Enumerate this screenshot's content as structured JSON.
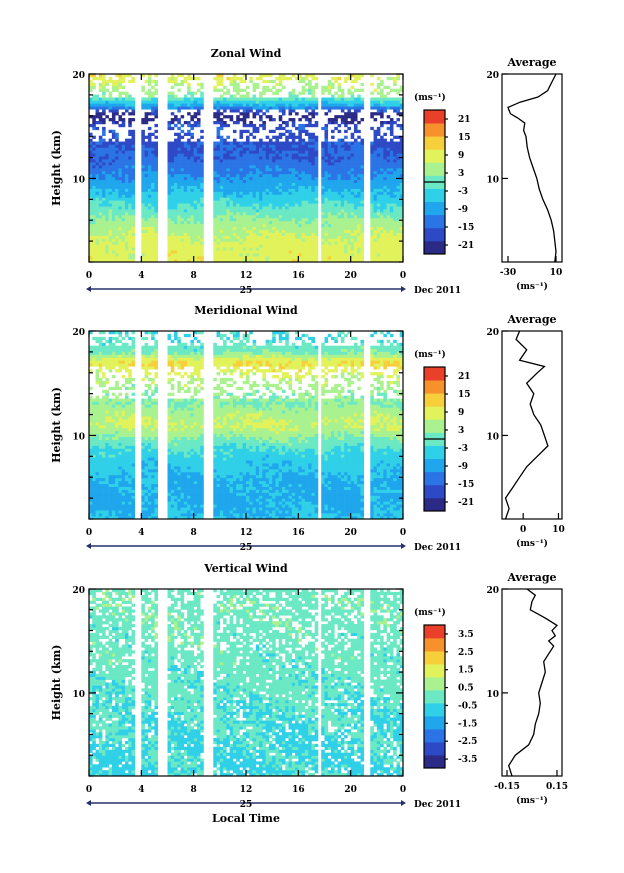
{
  "footer_label": "Local Time",
  "date_label": "Dec 2011",
  "day_label": "25",
  "hour_ticks": [
    "0",
    "4",
    "8",
    "12",
    "16",
    "20",
    "0"
  ],
  "height_ticks": [
    "10",
    "20"
  ],
  "ylabel": "Height (km)",
  "unit_label": "(ms⁻¹)",
  "average_title": "Average",
  "colormap": [
    "#2b2a86",
    "#2e49c6",
    "#2b74e6",
    "#1fa6ec",
    "#2fd0e8",
    "#6be8c4",
    "#a9f28f",
    "#e1f25a",
    "#f6cf3b",
    "#f7912c",
    "#ea3f28"
  ],
  "chart_data": [
    {
      "type": "heatmap",
      "title": "Zonal Wind",
      "ylabel": "Height (km)",
      "xlabel": "Local Time",
      "x_ticks": [
        "0",
        "4",
        "8",
        "12",
        "16",
        "20",
        "0"
      ],
      "ylim": [
        2,
        20
      ],
      "colorbar": {
        "label": "(ms⁻¹)",
        "ticks": [
          "21",
          "15",
          "9",
          "3",
          "-3",
          "-9",
          "-15",
          "-21"
        ],
        "range": [
          -24,
          24
        ]
      },
      "data_gaps_hours": [
        [
          3.4,
          4.0
        ],
        [
          5.3,
          6.0
        ],
        [
          8.7,
          9.6
        ],
        [
          17.4,
          17.8
        ],
        [
          21.0,
          21.4
        ]
      ],
      "profile_km_to_ms": [
        [
          2,
          9
        ],
        [
          4,
          8
        ],
        [
          6,
          3
        ],
        [
          8,
          -4
        ],
        [
          10,
          -10
        ],
        [
          12,
          -15
        ],
        [
          14,
          -17
        ],
        [
          15,
          -16
        ],
        [
          16,
          -24
        ],
        [
          17,
          -8
        ],
        [
          18,
          3
        ],
        [
          19,
          6
        ],
        [
          20,
          10
        ]
      ],
      "average": {
        "title": "Average",
        "xticks": [
          "-30",
          "10"
        ],
        "xlim": [
          -35,
          15
        ],
        "xlabel": "(ms⁻¹)",
        "yticks": [
          "10",
          "20"
        ],
        "x": [
          9,
          10,
          9,
          8,
          6,
          3,
          -1,
          -4,
          -6,
          -9,
          -12,
          -14,
          -15,
          -17,
          -16,
          -22,
          -28,
          -30,
          -20,
          -5,
          3,
          6,
          10
        ],
        "y": [
          2,
          3,
          4,
          5,
          6,
          7,
          8,
          9,
          10,
          11,
          12,
          13,
          14,
          14.6,
          15.3,
          15.8,
          16.2,
          16.8,
          17.3,
          17.8,
          18.4,
          19.1,
          20
        ]
      }
    },
    {
      "type": "heatmap",
      "title": "Meridional Wind",
      "ylabel": "Height (km)",
      "xlabel": "Local Time",
      "x_ticks": [
        "0",
        "4",
        "8",
        "12",
        "16",
        "20",
        "0"
      ],
      "ylim": [
        2,
        20
      ],
      "colorbar": {
        "label": "(ms⁻¹)",
        "ticks": [
          "21",
          "15",
          "9",
          "3",
          "-3",
          "-9",
          "-15",
          "-21"
        ],
        "range": [
          -24,
          24
        ]
      },
      "data_gaps_hours": [
        [
          3.4,
          4.0
        ],
        [
          5.3,
          6.0
        ],
        [
          8.7,
          9.6
        ],
        [
          17.4,
          17.8
        ],
        [
          21.0,
          21.4
        ]
      ],
      "profile_km_to_ms": [
        [
          2,
          -6
        ],
        [
          4,
          -8
        ],
        [
          6,
          -7
        ],
        [
          8,
          -4
        ],
        [
          9,
          -1
        ],
        [
          10,
          3
        ],
        [
          11,
          7
        ],
        [
          12,
          5
        ],
        [
          13,
          2
        ],
        [
          14,
          3
        ],
        [
          15,
          5
        ],
        [
          16,
          8
        ],
        [
          17,
          11
        ],
        [
          18,
          1
        ],
        [
          19,
          -2
        ],
        [
          20,
          -3
        ]
      ],
      "average": {
        "title": "Average",
        "xticks": [
          "0",
          "10"
        ],
        "xlim": [
          -6,
          11
        ],
        "xlabel": "(ms⁻¹)",
        "yticks": [
          "10",
          "20"
        ],
        "x": [
          -5,
          -4,
          -5,
          -3,
          -1,
          1,
          4,
          7,
          6,
          5,
          3,
          2,
          3,
          1,
          4,
          6,
          -1,
          1,
          -2,
          -1
        ],
        "y": [
          2,
          3,
          4,
          5,
          6,
          7,
          8,
          9,
          10,
          11,
          12,
          13,
          14,
          15,
          16,
          16.6,
          17.2,
          18.2,
          19.2,
          20
        ]
      }
    },
    {
      "type": "heatmap",
      "title": "Vertical Wind",
      "ylabel": "Height (km)",
      "xlabel": "Local Time",
      "x_ticks": [
        "0",
        "4",
        "8",
        "12",
        "16",
        "20",
        "0"
      ],
      "ylim": [
        2,
        20
      ],
      "colorbar": {
        "label": "(ms⁻¹)",
        "ticks": [
          "3.5",
          "2.5",
          "1.5",
          "0.5",
          "-0.5",
          "-1.5",
          "-2.5",
          "-3.5"
        ],
        "range": [
          -4,
          4
        ]
      },
      "data_gaps_hours": [
        [
          3.4,
          4.0
        ],
        [
          5.3,
          6.0
        ],
        [
          8.7,
          9.6
        ],
        [
          17.4,
          17.8
        ],
        [
          21.0,
          21.4
        ]
      ],
      "profile_km_to_ms": [
        [
          2,
          -0.5
        ],
        [
          6,
          -0.4
        ],
        [
          10,
          -0.2
        ],
        [
          14,
          0.0
        ],
        [
          18,
          0.1
        ],
        [
          20,
          0.1
        ]
      ],
      "average": {
        "title": "Average",
        "xticks": [
          "-0.15",
          "0.15"
        ],
        "xlim": [
          -0.18,
          0.18
        ],
        "xlabel": "(ms⁻¹)",
        "yticks": [
          "10",
          "20"
        ],
        "x": [
          -0.12,
          -0.14,
          -0.1,
          -0.02,
          0.01,
          0.02,
          0.04,
          0.05,
          0.04,
          0.06,
          0.08,
          0.07,
          0.11,
          0.13,
          0.1,
          0.14,
          0.12,
          0.15,
          0.08,
          -0.01,
          0.0,
          0.02,
          -0.03
        ],
        "y": [
          2,
          3,
          4,
          5,
          6,
          7,
          8,
          9,
          10,
          11,
          12,
          13,
          14,
          14.5,
          15,
          15.5,
          16,
          16.5,
          17.2,
          18,
          18.8,
          19.4,
          20
        ]
      }
    }
  ]
}
